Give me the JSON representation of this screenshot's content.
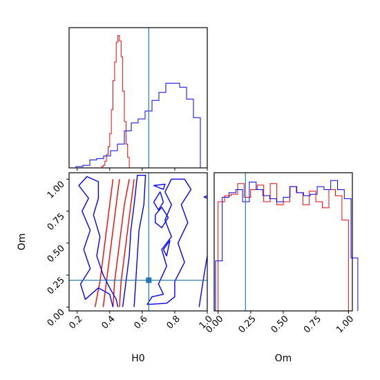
{
  "chart_data": {
    "type": "corner",
    "truth": {
      "H0": 0.64,
      "Om": 0.21
    },
    "colors": {
      "red": "#ff0000",
      "blue": "#0000ff",
      "truth": "#1f77b4"
    },
    "panels": [
      {
        "id": "H0-marginal",
        "type": "histogram",
        "xlim": [
          0.15,
          1.0
        ],
        "xticks": [
          0.2,
          0.4,
          0.6,
          0.8,
          1.0
        ],
        "tick_labels_shown": false,
        "series": [
          {
            "color": "red",
            "bin_start": 0.15,
            "bin_width": 0.01,
            "counts": [
              0,
              0,
              0,
              0,
              0,
              0,
              0,
              0,
              0,
              0,
              0,
              0,
              0,
              0,
              0,
              0,
              0,
              0,
              0,
              0,
              1,
              2,
              5,
              10,
              16,
              26,
              44,
              66,
              80,
              95,
              100,
              96,
              84,
              58,
              35,
              18,
              8,
              0
            ]
          },
          {
            "color": "blue",
            "bin_start": 0.15,
            "bin_width": 0.0425,
            "counts": [
              0,
              1,
              2,
              6,
              7,
              9,
              13,
              18,
              28,
              34,
              37,
              43,
              51,
              57,
              64,
              64,
              61,
              52,
              38,
              0
            ]
          }
        ]
      },
      {
        "id": "Om-marginal",
        "type": "histogram",
        "xlim": [
          -0.03,
          1.03
        ],
        "xticks": [
          0.0,
          0.25,
          0.5,
          0.75,
          1.0
        ],
        "x_tick_labels": [
          "0.00",
          "0.25",
          "0.50",
          "0.75",
          "1.00"
        ],
        "xlabel": "Om",
        "series": [
          {
            "color": "red",
            "bin_start": 0.0,
            "bin_width": 0.05,
            "counts": [
              72,
              76,
              77,
              84,
              75,
              80,
              83,
              72,
              84,
              70,
              72,
              82,
              78,
              70,
              79,
              72,
              68,
              80,
              76,
              60
            ]
          },
          {
            "color": "blue",
            "bin_start": -0.02,
            "bin_width": 0.052,
            "counts": [
              33,
              75,
              78,
              80,
              72,
              85,
              80,
              76,
              74,
              72,
              75,
              82,
              78,
              76,
              77,
              82,
              80,
              86,
              80,
              74,
              35
            ]
          }
        ]
      },
      {
        "id": "joint",
        "type": "contour",
        "xlim": [
          0.15,
          1.0
        ],
        "ylim": [
          -0.03,
          1.05
        ],
        "xticks": [
          0.2,
          0.4,
          0.6,
          0.8,
          1.0
        ],
        "x_tick_labels": [
          "0.2",
          "0.4",
          "0.6",
          "0.8",
          "1.0"
        ],
        "yticks": [
          0.0,
          0.25,
          0.5,
          0.75,
          1.0
        ],
        "y_tick_labels": [
          "0.00",
          "0.25",
          "0.50",
          "0.75",
          "1.00"
        ],
        "xlabel": "H0",
        "ylabel": "Om",
        "contours": [
          {
            "color": "red",
            "points": [
              [
                0.31,
                0.0
              ],
              [
                0.34,
                0.2
              ],
              [
                0.36,
                0.4
              ],
              [
                0.38,
                0.6
              ],
              [
                0.4,
                0.8
              ],
              [
                0.42,
                1.0
              ]
            ]
          },
          {
            "color": "red",
            "points": [
              [
                0.36,
                0.0
              ],
              [
                0.38,
                0.2
              ],
              [
                0.4,
                0.4
              ],
              [
                0.42,
                0.6
              ],
              [
                0.44,
                0.8
              ],
              [
                0.46,
                1.0
              ]
            ]
          },
          {
            "color": "red",
            "points": [
              [
                0.42,
                0.0
              ],
              [
                0.43,
                0.2
              ],
              [
                0.45,
                0.4
              ],
              [
                0.47,
                0.6
              ],
              [
                0.49,
                0.8
              ],
              [
                0.52,
                1.0
              ]
            ]
          },
          {
            "color": "red",
            "points": [
              [
                0.46,
                0.0
              ],
              [
                0.47,
                0.2
              ],
              [
                0.49,
                0.4
              ],
              [
                0.51,
                0.6
              ],
              [
                0.53,
                0.8
              ],
              [
                0.55,
                1.0
              ]
            ]
          },
          {
            "color": "blue",
            "points": [
              [
                0.42,
                0.0
              ],
              [
                0.4,
                0.1
              ],
              [
                0.33,
                0.15
              ],
              [
                0.25,
                0.06
              ],
              [
                0.22,
                0.18
              ],
              [
                0.28,
                0.3
              ],
              [
                0.24,
                0.45
              ],
              [
                0.28,
                0.6
              ],
              [
                0.23,
                0.75
              ],
              [
                0.27,
                0.85
              ],
              [
                0.21,
                0.95
              ],
              [
                0.26,
                1.02
              ],
              [
                0.33,
                0.98
              ],
              [
                0.33,
                0.85
              ],
              [
                0.3,
                0.72
              ],
              [
                0.34,
                0.55
              ],
              [
                0.32,
                0.4
              ],
              [
                0.36,
                0.25
              ],
              [
                0.4,
                0.15
              ],
              [
                0.44,
                0.06
              ],
              [
                0.45,
                0.0
              ]
            ]
          },
          {
            "color": "blue",
            "points": [
              [
                0.48,
                0.0
              ],
              [
                0.5,
                0.2
              ],
              [
                0.52,
                0.4
              ],
              [
                0.53,
                0.6
              ],
              [
                0.55,
                0.8
              ],
              [
                0.57,
                1.03
              ],
              [
                0.62,
                1.03
              ],
              [
                0.61,
                0.8
              ],
              [
                0.58,
                0.6
              ],
              [
                0.57,
                0.4
              ],
              [
                0.56,
                0.2
              ],
              [
                0.55,
                0.0
              ]
            ]
          },
          {
            "color": "blue",
            "points": [
              [
                0.63,
                0.02
              ],
              [
                0.75,
                0.03
              ],
              [
                0.8,
                0.08
              ],
              [
                0.8,
                0.2
              ],
              [
                0.86,
                0.35
              ],
              [
                0.82,
                0.5
              ],
              [
                0.88,
                0.66
              ],
              [
                0.84,
                0.8
              ],
              [
                0.9,
                0.92
              ],
              [
                0.86,
                1.0
              ],
              [
                0.78,
                1.0
              ],
              [
                0.74,
                0.9
              ],
              [
                0.78,
                0.8
              ],
              [
                0.74,
                0.68
              ],
              [
                0.78,
                0.55
              ],
              [
                0.72,
                0.45
              ],
              [
                0.75,
                0.32
              ],
              [
                0.7,
                0.18
              ],
              [
                0.73,
                0.1
              ],
              [
                0.66,
                0.08
              ],
              [
                0.63,
                0.02
              ]
            ]
          },
          {
            "color": "blue",
            "points": [
              [
                0.68,
                0.72
              ],
              [
                0.72,
                0.78
              ],
              [
                0.76,
                0.7
              ],
              [
                0.72,
                0.62
              ],
              [
                0.68,
                0.66
              ],
              [
                0.68,
                0.72
              ]
            ]
          },
          {
            "color": "blue",
            "points": [
              [
                0.67,
                0.82
              ],
              [
                0.71,
                0.9
              ],
              [
                0.73,
                0.82
              ],
              [
                0.7,
                0.76
              ],
              [
                0.67,
                0.82
              ]
            ]
          },
          {
            "color": "blue",
            "points": [
              [
                0.67,
                0.95
              ],
              [
                0.74,
                0.96
              ],
              [
                0.73,
                0.92
              ],
              [
                0.67,
                0.95
              ]
            ]
          },
          {
            "color": "blue",
            "points": [
              [
                0.73,
                0.45
              ],
              [
                0.77,
                0.52
              ],
              [
                0.75,
                0.4
              ],
              [
                0.73,
                0.45
              ]
            ]
          },
          {
            "color": "blue",
            "points": [
              [
                0.95,
                0.0
              ],
              [
                0.98,
                0.25
              ],
              [
                1.0,
                0.4
              ]
            ]
          },
          {
            "color": "blue",
            "points": [
              [
                1.0,
                0.85
              ],
              [
                0.98,
                0.86
              ],
              [
                1.0,
                0.87
              ]
            ]
          }
        ]
      }
    ]
  }
}
